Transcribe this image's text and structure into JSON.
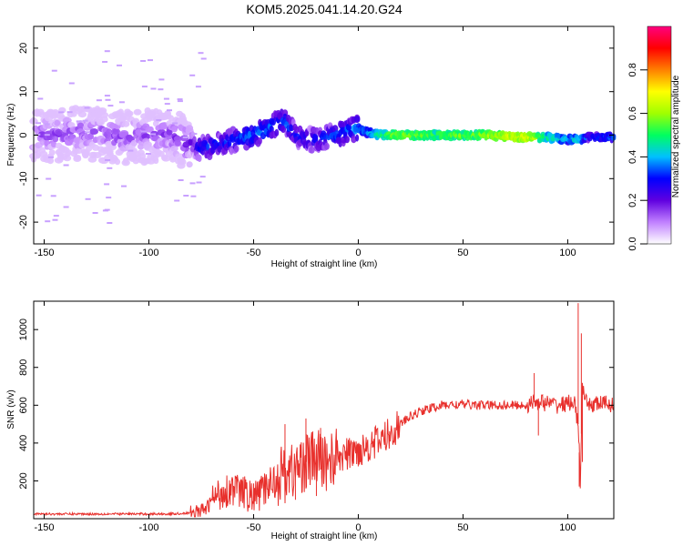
{
  "title": "KOM5.2025.041.14.20.G24",
  "chart_data": [
    {
      "type": "heatmap",
      "xlabel": "Height of straight line (km)",
      "ylabel": "Frequency (Hz)",
      "xlim": [
        -155,
        122
      ],
      "ylim": [
        -25,
        25
      ],
      "xticks": [
        -150,
        -100,
        -50,
        0,
        50,
        100
      ],
      "yticks": [
        -20,
        -10,
        0,
        10,
        20
      ],
      "colorbar": {
        "label": "Normalized spectral amplitude",
        "range": [
          0,
          1
        ],
        "ticks": [
          "0.0",
          "0.2",
          "0.4",
          "0.6",
          "0.8"
        ],
        "colors": [
          "#ffffff",
          "#c080ff",
          "#6000e0",
          "#0000ff",
          "#00c0ff",
          "#00ff60",
          "#a0ff00",
          "#ffff00",
          "#ff8000",
          "#ff0000",
          "#ff0080"
        ]
      },
      "ridge": {
        "x": [
          -150,
          -130,
          -110,
          -90,
          -80,
          -75,
          -65,
          -55,
          -45,
          -40,
          -35,
          -30,
          -25,
          -20,
          -15,
          -10,
          -5,
          0,
          5,
          10,
          20,
          40,
          60,
          80,
          90,
          100,
          105,
          110,
          120
        ],
        "freq": [
          0,
          0.5,
          -0.5,
          0,
          -2,
          -3,
          -2,
          -0.5,
          1,
          2.5,
          3,
          0,
          -1,
          -1,
          -0.5,
          0,
          1,
          1.5,
          0.5,
          0,
          0,
          0,
          0,
          -0.5,
          -0.5,
          -1,
          -1,
          -0.5,
          -0.5
        ],
        "amplitude": [
          0.15,
          0.15,
          0.15,
          0.15,
          0.2,
          0.3,
          0.3,
          0.35,
          0.35,
          0.35,
          0.35,
          0.3,
          0.3,
          0.3,
          0.32,
          0.34,
          0.36,
          0.38,
          0.4,
          0.5,
          0.6,
          0.55,
          0.6,
          0.7,
          0.5,
          0.4,
          0.45,
          0.3,
          0.35
        ]
      }
    },
    {
      "type": "line",
      "xlabel": "Height of straight line (km)",
      "ylabel": "SNR (v/v)",
      "xlim": [
        -155,
        122
      ],
      "ylim": [
        0,
        1150
      ],
      "xticks": [
        -150,
        -100,
        -50,
        0,
        50,
        100
      ],
      "yticks": [
        200,
        400,
        600,
        800,
        1000
      ],
      "series": [
        {
          "color": "#e8302c",
          "x": [
            -155,
            -140,
            -120,
            -100,
            -90,
            -80,
            -75,
            -72,
            -70,
            -65,
            -60,
            -55,
            -50,
            -45,
            -40,
            -35,
            -30,
            -25,
            -20,
            -15,
            -10,
            -5,
            0,
            5,
            10,
            15,
            20,
            25,
            30,
            40,
            50,
            60,
            70,
            80,
            85,
            90,
            95,
            100,
            103,
            105,
            106,
            107,
            108,
            110,
            115,
            122
          ],
          "y": [
            25,
            25,
            25,
            25,
            25,
            30,
            40,
            60,
            100,
            140,
            160,
            140,
            110,
            150,
            220,
            240,
            260,
            300,
            320,
            300,
            330,
            340,
            360,
            390,
            410,
            450,
            500,
            540,
            570,
            600,
            605,
            600,
            600,
            600,
            620,
            610,
            600,
            610,
            620,
            500,
            200,
            700,
            620,
            600,
            610,
            605
          ]
        }
      ],
      "spikes": [
        {
          "x": 84,
          "y": 770
        },
        {
          "x": 86,
          "y": 440
        },
        {
          "x": 105,
          "y": 1140
        },
        {
          "x": 105.5,
          "y": 170
        },
        {
          "x": 106.5,
          "y": 980
        },
        {
          "x": 107,
          "y": 300
        },
        {
          "x": -35,
          "y": 500
        },
        {
          "x": -30,
          "y": 100
        },
        {
          "x": -25,
          "y": 530
        },
        {
          "x": -20,
          "y": 120
        },
        {
          "x": -18,
          "y": 480
        }
      ]
    }
  ]
}
